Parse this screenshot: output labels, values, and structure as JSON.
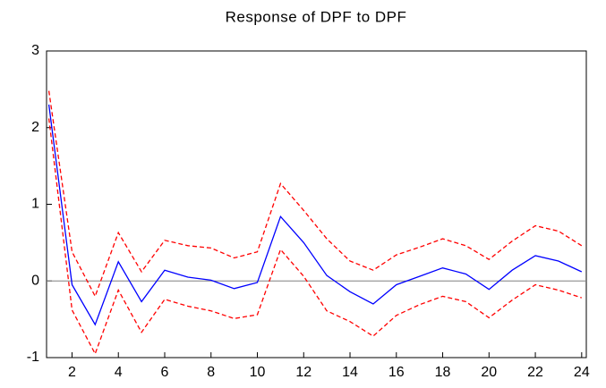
{
  "chart_data": {
    "type": "line",
    "title": "Response of DPF to DPF",
    "x": [
      1,
      2,
      3,
      4,
      5,
      6,
      7,
      8,
      9,
      10,
      11,
      12,
      13,
      14,
      15,
      16,
      17,
      18,
      19,
      20,
      21,
      22,
      23,
      24
    ],
    "series": [
      {
        "color": "#0000ff",
        "style": "solid",
        "values": [
          2.3,
          -0.05,
          -0.57,
          0.25,
          -0.27,
          0.14,
          0.05,
          0.01,
          -0.1,
          -0.02,
          0.84,
          0.5,
          0.07,
          -0.14,
          -0.3,
          -0.05,
          0.06,
          0.17,
          0.09,
          -0.11,
          0.14,
          0.33,
          0.26,
          0.12
        ]
      },
      {
        "color": "#ff0000",
        "style": "dashed",
        "values": [
          2.48,
          0.38,
          -0.2,
          0.63,
          0.12,
          0.53,
          0.46,
          0.43,
          0.3,
          0.38,
          1.27,
          0.92,
          0.55,
          0.26,
          0.14,
          0.34,
          0.44,
          0.55,
          0.46,
          0.28,
          0.52,
          0.72,
          0.65,
          0.46
        ]
      },
      {
        "color": "#ff0000",
        "style": "dashed",
        "values": [
          2.12,
          -0.38,
          -0.95,
          -0.12,
          -0.67,
          -0.24,
          -0.33,
          -0.39,
          -0.49,
          -0.44,
          0.41,
          0.06,
          -0.39,
          -0.53,
          -0.72,
          -0.45,
          -0.31,
          -0.2,
          -0.27,
          -0.48,
          -0.25,
          -0.05,
          -0.12,
          -0.22
        ]
      }
    ],
    "xlim": [
      0.9,
      24.2
    ],
    "xticks": [
      2,
      4,
      6,
      8,
      10,
      12,
      14,
      16,
      18,
      20,
      22,
      24
    ],
    "ylim": [
      -1,
      3
    ],
    "yticks": [
      -1,
      0,
      1,
      2,
      3
    ],
    "zero_line": true
  }
}
